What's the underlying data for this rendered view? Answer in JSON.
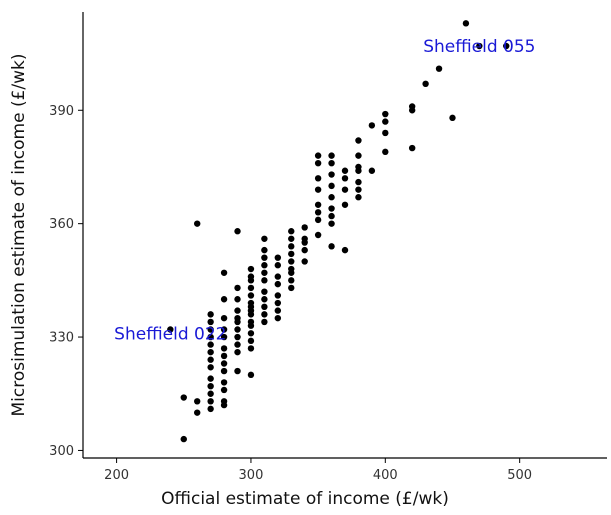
{
  "chart_data": {
    "type": "scatter",
    "title": "",
    "xlabel": "Official estimate of income (£/wk)",
    "ylabel": "Microsimulation estimate of income (£/wk)",
    "xlim": [
      175,
      565
    ],
    "ylim": [
      298,
      416
    ],
    "xticks": [
      200,
      300,
      400,
      500
    ],
    "yticks": [
      300,
      330,
      360,
      390
    ],
    "grid": false,
    "point_color": "#000000",
    "annotation_color": "#1a1ad6",
    "annotations": [
      {
        "text": "Sheffield 022",
        "x": 240,
        "y": 331
      },
      {
        "text": "Sheffield 055",
        "x": 470,
        "y": 407
      }
    ],
    "points": [
      [
        250,
        303
      ],
      [
        250,
        314
      ],
      [
        260,
        310
      ],
      [
        260,
        313
      ],
      [
        260,
        360
      ],
      [
        240,
        332
      ],
      [
        270,
        311
      ],
      [
        270,
        313
      ],
      [
        270,
        315
      ],
      [
        270,
        317
      ],
      [
        270,
        319
      ],
      [
        270,
        322
      ],
      [
        270,
        324
      ],
      [
        270,
        326
      ],
      [
        270,
        328
      ],
      [
        270,
        330
      ],
      [
        270,
        332
      ],
      [
        270,
        334
      ],
      [
        270,
        336
      ],
      [
        280,
        312
      ],
      [
        280,
        313
      ],
      [
        280,
        316
      ],
      [
        280,
        318
      ],
      [
        280,
        321
      ],
      [
        280,
        323
      ],
      [
        280,
        325
      ],
      [
        280,
        327
      ],
      [
        280,
        330
      ],
      [
        280,
        332
      ],
      [
        280,
        335
      ],
      [
        280,
        340
      ],
      [
        280,
        347
      ],
      [
        290,
        321
      ],
      [
        290,
        326
      ],
      [
        290,
        328
      ],
      [
        290,
        330
      ],
      [
        290,
        332
      ],
      [
        290,
        334
      ],
      [
        290,
        335
      ],
      [
        290,
        337
      ],
      [
        290,
        340
      ],
      [
        290,
        343
      ],
      [
        290,
        358
      ],
      [
        300,
        320
      ],
      [
        300,
        327
      ],
      [
        300,
        329
      ],
      [
        300,
        331
      ],
      [
        300,
        333
      ],
      [
        300,
        334
      ],
      [
        300,
        336
      ],
      [
        300,
        337
      ],
      [
        300,
        338
      ],
      [
        300,
        339
      ],
      [
        300,
        341
      ],
      [
        300,
        343
      ],
      [
        300,
        345
      ],
      [
        300,
        346
      ],
      [
        300,
        348
      ],
      [
        310,
        334
      ],
      [
        310,
        336
      ],
      [
        310,
        338
      ],
      [
        310,
        340
      ],
      [
        310,
        342
      ],
      [
        310,
        345
      ],
      [
        310,
        347
      ],
      [
        310,
        349
      ],
      [
        310,
        351
      ],
      [
        310,
        353
      ],
      [
        310,
        356
      ],
      [
        320,
        335
      ],
      [
        320,
        337
      ],
      [
        320,
        339
      ],
      [
        320,
        341
      ],
      [
        320,
        344
      ],
      [
        320,
        346
      ],
      [
        320,
        349
      ],
      [
        320,
        351
      ],
      [
        330,
        343
      ],
      [
        330,
        345
      ],
      [
        330,
        347
      ],
      [
        330,
        348
      ],
      [
        330,
        350
      ],
      [
        330,
        352
      ],
      [
        330,
        354
      ],
      [
        330,
        356
      ],
      [
        330,
        358
      ],
      [
        340,
        350
      ],
      [
        340,
        353
      ],
      [
        340,
        355
      ],
      [
        340,
        356
      ],
      [
        340,
        359
      ],
      [
        350,
        357
      ],
      [
        350,
        361
      ],
      [
        350,
        363
      ],
      [
        350,
        365
      ],
      [
        350,
        369
      ],
      [
        350,
        372
      ],
      [
        350,
        376
      ],
      [
        350,
        378
      ],
      [
        360,
        354
      ],
      [
        360,
        360
      ],
      [
        360,
        362
      ],
      [
        360,
        364
      ],
      [
        360,
        367
      ],
      [
        360,
        370
      ],
      [
        360,
        373
      ],
      [
        360,
        376
      ],
      [
        360,
        378
      ],
      [
        370,
        353
      ],
      [
        370,
        365
      ],
      [
        370,
        369
      ],
      [
        370,
        372
      ],
      [
        370,
        374
      ],
      [
        380,
        367
      ],
      [
        380,
        369
      ],
      [
        380,
        371
      ],
      [
        380,
        374
      ],
      [
        380,
        375
      ],
      [
        380,
        378
      ],
      [
        380,
        382
      ],
      [
        390,
        374
      ],
      [
        390,
        386
      ],
      [
        400,
        379
      ],
      [
        400,
        384
      ],
      [
        400,
        387
      ],
      [
        400,
        389
      ],
      [
        420,
        380
      ],
      [
        420,
        390
      ],
      [
        420,
        391
      ],
      [
        430,
        397
      ],
      [
        440,
        401
      ],
      [
        450,
        388
      ],
      [
        460,
        413
      ],
      [
        470,
        407
      ],
      [
        490,
        407
      ]
    ]
  }
}
